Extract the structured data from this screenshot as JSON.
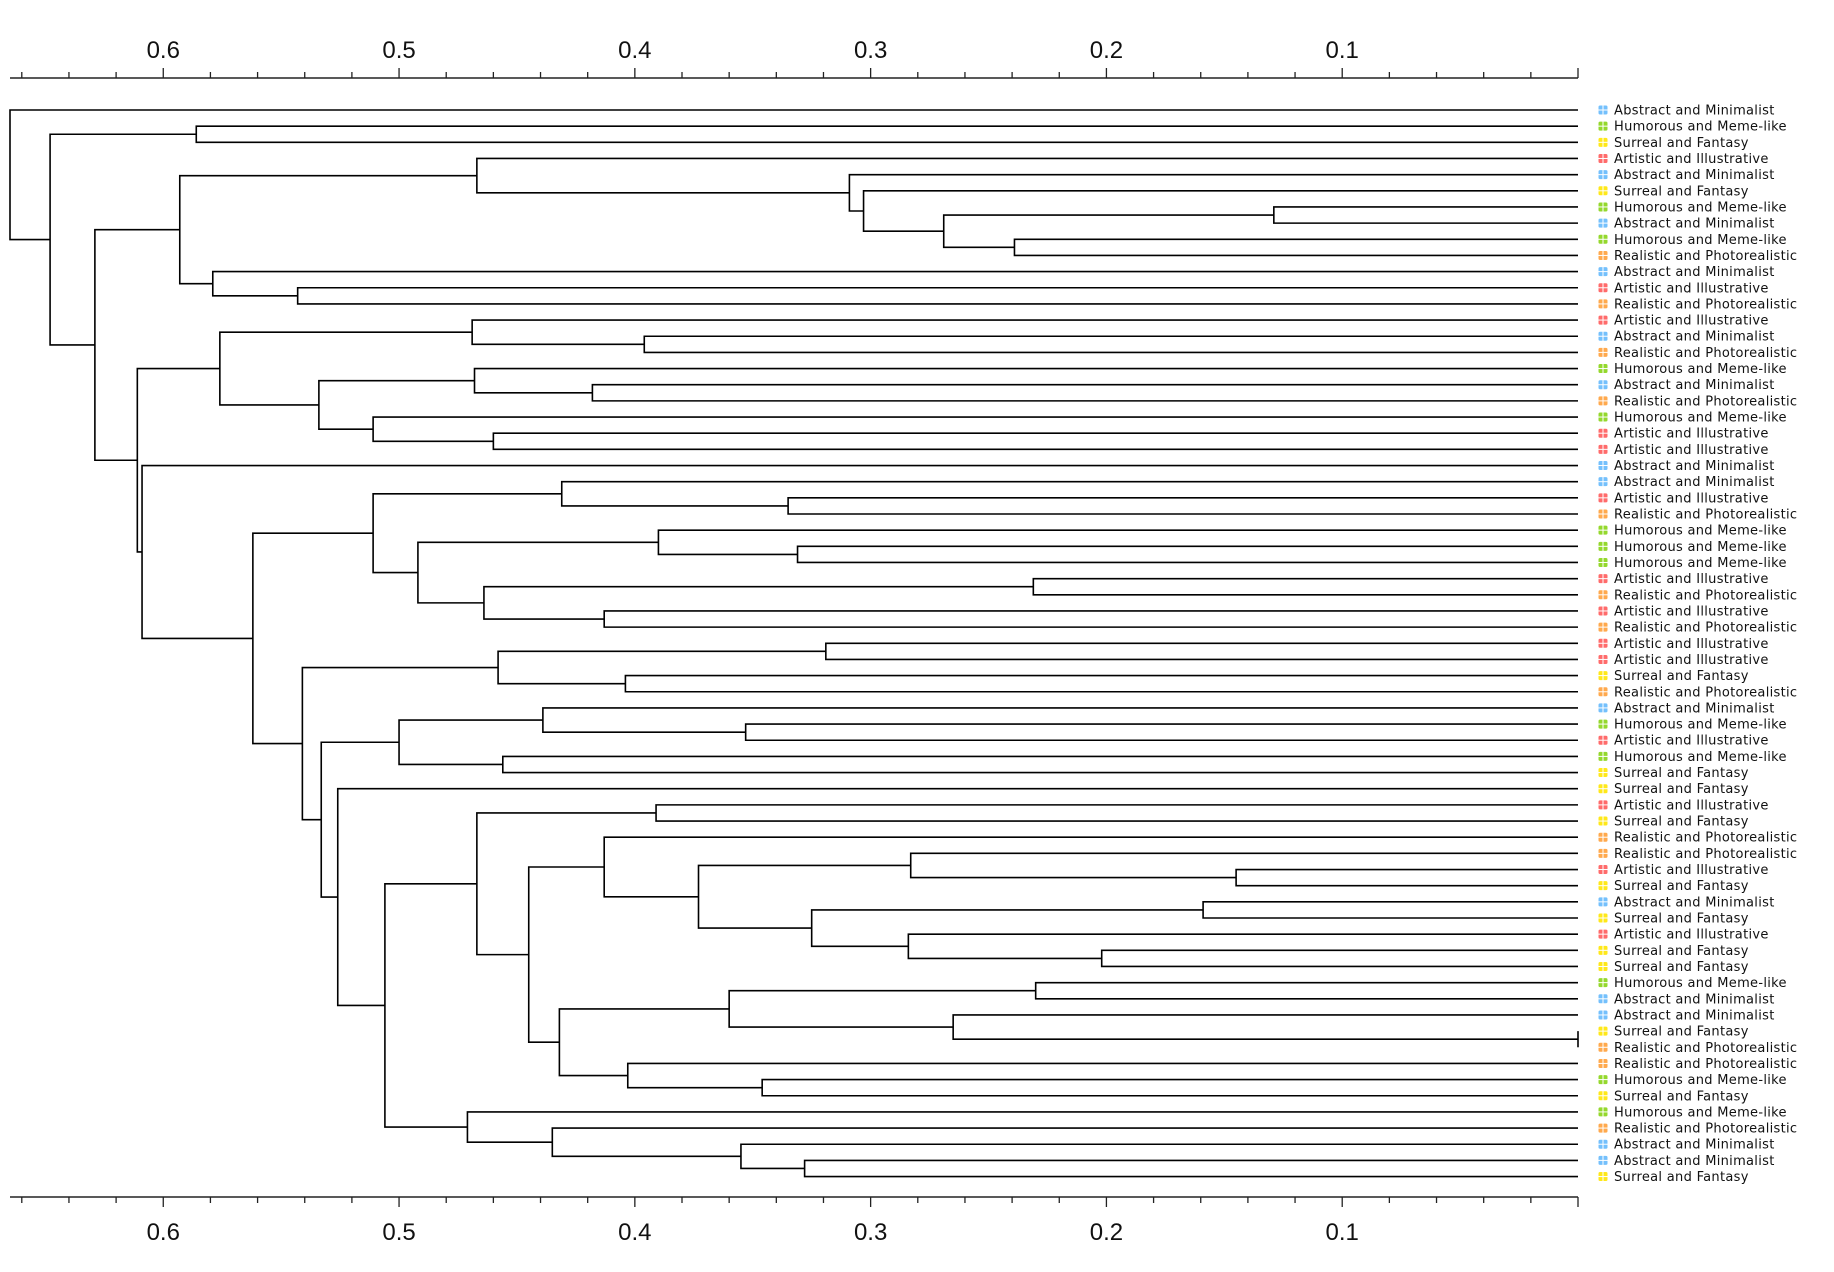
{
  "chart_data": {
    "type": "dendrogram",
    "orientation": "root-left",
    "xlim": [
      0.665,
      0.0
    ],
    "major_ticks": [
      0.6,
      0.5,
      0.4,
      0.3,
      0.2,
      0.1
    ],
    "minor_tick_step": 0.02,
    "axis_positions": [
      "top",
      "bottom"
    ],
    "categories": {
      "Abstract and Minimalist": "#74C0FC",
      "Humorous and Meme-like": "#94D82D",
      "Surreal and Fantasy": "#FFE819",
      "Artistic and Illustrative": "#FF6B6B",
      "Realistic and Photorealistic": "#FFA94D"
    },
    "leaves": [
      "Abstract and Minimalist",
      "Humorous and Meme-like",
      "Surreal and Fantasy",
      "Artistic and Illustrative",
      "Abstract and Minimalist",
      "Surreal and Fantasy",
      "Humorous and Meme-like",
      "Abstract and Minimalist",
      "Humorous and Meme-like",
      "Realistic and Photorealistic",
      "Abstract and Minimalist",
      "Artistic and Illustrative",
      "Realistic and Photorealistic",
      "Artistic and Illustrative",
      "Abstract and Minimalist",
      "Realistic and Photorealistic",
      "Humorous and Meme-like",
      "Abstract and Minimalist",
      "Realistic and Photorealistic",
      "Humorous and Meme-like",
      "Artistic and Illustrative",
      "Artistic and Illustrative",
      "Abstract and Minimalist",
      "Abstract and Minimalist",
      "Artistic and Illustrative",
      "Realistic and Photorealistic",
      "Humorous and Meme-like",
      "Humorous and Meme-like",
      "Humorous and Meme-like",
      "Artistic and Illustrative",
      "Realistic and Photorealistic",
      "Artistic and Illustrative",
      "Realistic and Photorealistic",
      "Artistic and Illustrative",
      "Artistic and Illustrative",
      "Surreal and Fantasy",
      "Realistic and Photorealistic",
      "Abstract and Minimalist",
      "Humorous and Meme-like",
      "Artistic and Illustrative",
      "Humorous and Meme-like",
      "Surreal and Fantasy",
      "Surreal and Fantasy",
      "Artistic and Illustrative",
      "Surreal and Fantasy",
      "Realistic and Photorealistic",
      "Realistic and Photorealistic",
      "Artistic and Illustrative",
      "Surreal and Fantasy",
      "Abstract and Minimalist",
      "Surreal and Fantasy",
      "Artistic and Illustrative",
      "Surreal and Fantasy",
      "Surreal and Fantasy",
      "Humorous and Meme-like",
      "Abstract and Minimalist",
      "Abstract and Minimalist",
      "Surreal and Fantasy",
      "Realistic and Photorealistic",
      "Realistic and Photorealistic",
      "Humorous and Meme-like",
      "Surreal and Fantasy",
      "Humorous and Meme-like",
      "Realistic and Photorealistic",
      "Abstract and Minimalist",
      "Abstract and Minimalist",
      "Surreal and Fantasy"
    ],
    "tree": [
      "h",
      0.665,
      [
        "l",
        0
      ],
      [
        "h",
        0.648,
        [
          "h",
          0.586,
          [
            "l",
            1
          ],
          [
            "l",
            2
          ]
        ],
        [
          "h",
          0.629,
          [
            "h",
            0.593,
            [
              "h",
              0.467,
              [
                "l",
                3
              ],
              [
                "h",
                0.309,
                [
                  "l",
                  4
                ],
                [
                  "h",
                  0.303,
                  [
                    "l",
                    5
                  ],
                  [
                    "h",
                    0.269,
                    [
                      "h",
                      0.129,
                      [
                        "l",
                        6
                      ],
                      [
                        "l",
                        7
                      ]
                    ],
                    [
                      "h",
                      0.239,
                      [
                        "l",
                        8
                      ],
                      [
                        "l",
                        9
                      ]
                    ]
                  ]
                ]
              ]
            ],
            [
              "h",
              0.579,
              [
                "l",
                10
              ],
              [
                "h",
                0.543,
                [
                  "l",
                  11
                ],
                [
                  "l",
                  12
                ]
              ]
            ]
          ],
          [
            "h",
            0.611,
            [
              "h",
              0.576,
              [
                "h",
                0.469,
                [
                  "l",
                  13
                ],
                [
                  "h",
                  0.396,
                  [
                    "l",
                    14
                  ],
                  [
                    "l",
                    15
                  ]
                ]
              ],
              [
                "h",
                0.534,
                [
                  "h",
                  0.468,
                  [
                    "l",
                    16
                  ],
                  [
                    "h",
                    0.418,
                    [
                      "l",
                      17
                    ],
                    [
                      "l",
                      18
                    ]
                  ]
                ],
                [
                  "h",
                  0.511,
                  [
                    "l",
                    19
                  ],
                  [
                    "h",
                    0.46,
                    [
                      "l",
                      20
                    ],
                    [
                      "l",
                      21
                    ]
                  ]
                ]
              ]
            ],
            [
              "h",
              0.609,
              [
                "l",
                22
              ],
              [
                "h",
                0.562,
                [
                  "h",
                  0.511,
                  [
                    "h",
                    0.431,
                    [
                      "l",
                      23
                    ],
                    [
                      "h",
                      0.335,
                      [
                        "l",
                        24
                      ],
                      [
                        "l",
                        25
                      ]
                    ]
                  ],
                  [
                    "h",
                    0.492,
                    [
                      "h",
                      0.39,
                      [
                        "l",
                        26
                      ],
                      [
                        "h",
                        0.331,
                        [
                          "l",
                          27
                        ],
                        [
                          "l",
                          28
                        ]
                      ]
                    ],
                    [
                      "h",
                      0.464,
                      [
                        "h",
                        0.231,
                        [
                          "l",
                          29
                        ],
                        [
                          "l",
                          30
                        ]
                      ],
                      [
                        "h",
                        0.413,
                        [
                          "l",
                          31
                        ],
                        [
                          "l",
                          32
                        ]
                      ]
                    ]
                  ]
                ],
                [
                  "h",
                  0.541,
                  [
                    "h",
                    0.458,
                    [
                      "h",
                      0.319,
                      [
                        "l",
                        33
                      ],
                      [
                        "l",
                        34
                      ]
                    ],
                    [
                      "h",
                      0.404,
                      [
                        "l",
                        35
                      ],
                      [
                        "l",
                        36
                      ]
                    ]
                  ],
                  [
                    "h",
                    0.533,
                    [
                      "h",
                      0.5,
                      [
                        "h",
                        0.439,
                        [
                          "l",
                          37
                        ],
                        [
                          "h",
                          0.353,
                          [
                            "l",
                            38
                          ],
                          [
                            "l",
                            39
                          ]
                        ]
                      ],
                      [
                        "h",
                        0.456,
                        [
                          "l",
                          40
                        ],
                        [
                          "l",
                          41
                        ]
                      ]
                    ],
                    [
                      "h",
                      0.526,
                      [
                        "l",
                        42
                      ],
                      [
                        "h",
                        0.506,
                        [
                          "h",
                          0.467,
                          [
                            "h",
                            0.391,
                            [
                              "l",
                              43
                            ],
                            [
                              "l",
                              44
                            ]
                          ],
                          [
                            "h",
                            0.445,
                            [
                              "h",
                              0.413,
                              [
                                "l",
                                45
                              ],
                              [
                                "h",
                                0.373,
                                [
                                  "h",
                                  0.283,
                                  [
                                    "l",
                                    46
                                  ],
                                  [
                                    "h",
                                    0.145,
                                    [
                                      "l",
                                      47
                                    ],
                                    [
                                      "l",
                                      48
                                    ]
                                  ]
                                ],
                                [
                                  "h",
                                  0.325,
                                  [
                                    "h",
                                    0.159,
                                    [
                                      "l",
                                      49
                                    ],
                                    [
                                      "l",
                                      50
                                    ]
                                  ],
                                  [
                                    "h",
                                    0.284,
                                    [
                                      "l",
                                      51
                                    ],
                                    [
                                      "h",
                                      0.202,
                                      [
                                        "l",
                                        52
                                      ],
                                      [
                                        "l",
                                        53
                                      ]
                                    ]
                                  ]
                                ]
                              ]
                            ],
                            [
                              "h",
                              0.432,
                              [
                                "h",
                                0.36,
                                [
                                  "h",
                                  0.23,
                                  [
                                    "l",
                                    54
                                  ],
                                  [
                                    "l",
                                    55
                                  ]
                                ],
                                [
                                  "h",
                                  0.265,
                                  [
                                    "l",
                                    56
                                  ],
                                  [
                                    "h",
                                    0.0,
                                    [
                                      "l",
                                      57
                                    ],
                                    [
                                      "l",
                                      58
                                    ]
                                  ]
                                ]
                              ],
                              [
                                "h",
                                0.403,
                                [
                                  "l",
                                  59
                                ],
                                [
                                  "h",
                                  0.346,
                                  [
                                    "l",
                                    60
                                  ],
                                  [
                                    "l",
                                    61
                                  ]
                                ]
                              ]
                            ]
                          ]
                        ],
                        [
                          "h",
                          0.471,
                          [
                            "l",
                            62
                          ],
                          [
                            "h",
                            0.435,
                            [
                              "l",
                              63
                            ],
                            [
                              "h",
                              0.355,
                              [
                                "l",
                                64
                              ],
                              [
                                "h",
                                0.328,
                                [
                                  "l",
                                  65
                                ],
                                [
                                  "l",
                                  66
                                ]
                              ]
                            ]
                          ]
                        ]
                      ]
                    ]
                  ]
                ]
              ]
            ]
          ]
        ]
      ]
    ]
  }
}
